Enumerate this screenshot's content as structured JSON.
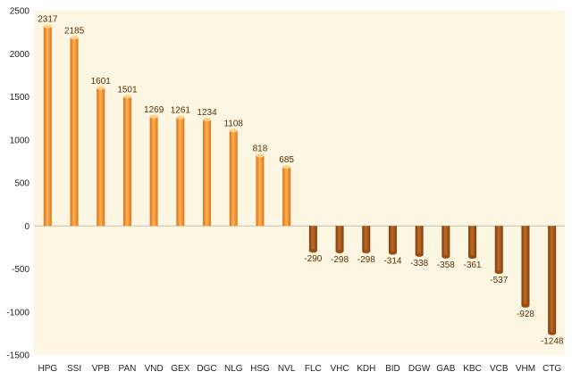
{
  "chart_data": {
    "type": "bar",
    "categories": [
      "HPG",
      "SSI",
      "VPB",
      "PAN",
      "VND",
      "GEX",
      "DGC",
      "NLG",
      "HSG",
      "NVL",
      "FLC",
      "VHC",
      "KDH",
      "BID",
      "DGW",
      "GAB",
      "KBC",
      "VCB",
      "VHM",
      "CTG"
    ],
    "values": [
      2317,
      2185,
      1601,
      1501,
      1269,
      1261,
      1234,
      1108,
      818,
      685,
      -290,
      -298,
      -298,
      -314,
      -338,
      -358,
      -361,
      -537,
      -928,
      -1248
    ],
    "data_labels": [
      "2317",
      "2185",
      "1601",
      "1501",
      "1269",
      "1261",
      "1234",
      "1108",
      "818",
      "685",
      "-290",
      "-298",
      "-298",
      "-314",
      "-338",
      "-358",
      "-361",
      "-537",
      "-928",
      "-1248"
    ],
    "title": "",
    "xlabel": "",
    "ylabel": "",
    "ylim": [
      -1500,
      2500
    ],
    "yticks": [
      "2500",
      "2000",
      "1500",
      "1000",
      "500",
      "0",
      "-500",
      "-1000",
      "-1500"
    ],
    "grid": false,
    "colors": {
      "plot_background": "#fdf6e3",
      "positive_bar": "#f28a1e",
      "positive_bar_dark": "#c7620a",
      "negative_bar": "#a8561a",
      "negative_bar_dark": "#7a3a0c",
      "zero_line": "#c9c2b0"
    }
  }
}
